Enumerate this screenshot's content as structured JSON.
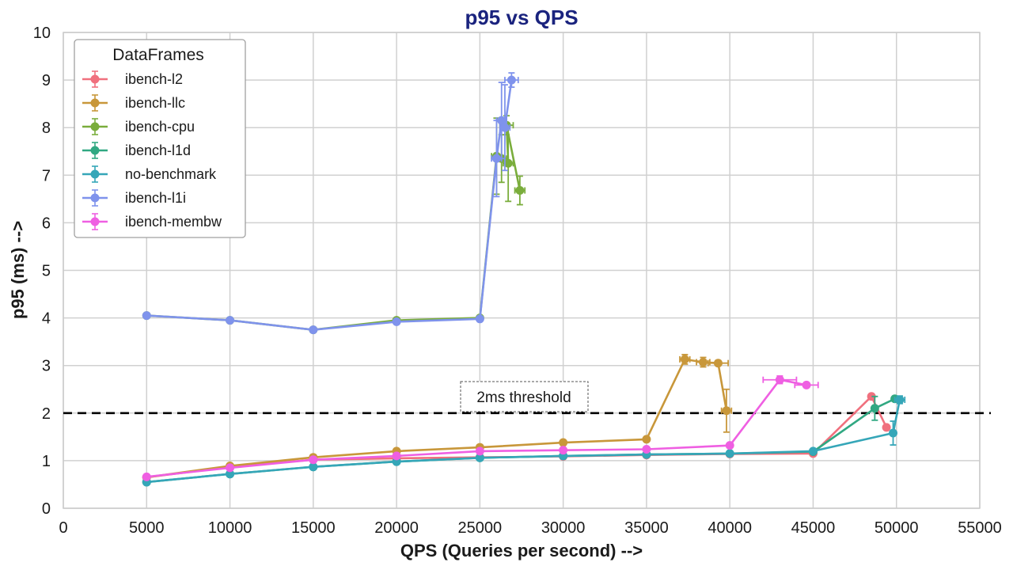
{
  "chart_data": {
    "type": "line",
    "title": "p95 vs QPS",
    "xlabel": "QPS (Queries per second) -->",
    "ylabel": "p95 (ms) -->",
    "xlim": [
      0,
      55000
    ],
    "ylim": [
      0,
      10
    ],
    "xticks": [
      "0",
      "5000",
      "10000",
      "15000",
      "20000",
      "25000",
      "30000",
      "35000",
      "40000",
      "45000",
      "50000",
      "55000"
    ],
    "yticks": [
      "0",
      "1",
      "2",
      "3",
      "4",
      "5",
      "6",
      "7",
      "8",
      "9",
      "10"
    ],
    "grid": true,
    "legend": {
      "title": "DataFrames",
      "placement": "top-left"
    },
    "annotations": [
      {
        "text": "2ms threshold",
        "y": 2,
        "style": "dashed"
      }
    ],
    "series": [
      {
        "name": "ibench-l2",
        "color": "#f0707e",
        "points": [
          {
            "x": 5000,
            "y": 0.65
          },
          {
            "x": 10000,
            "y": 0.87
          },
          {
            "x": 15000,
            "y": 1.02
          },
          {
            "x": 20000,
            "y": 1.05
          },
          {
            "x": 25000,
            "y": 1.07
          },
          {
            "x": 30000,
            "y": 1.09
          },
          {
            "x": 35000,
            "y": 1.12
          },
          {
            "x": 40000,
            "y": 1.14
          },
          {
            "x": 45000,
            "y": 1.15
          },
          {
            "x": 48500,
            "y": 2.35
          },
          {
            "x": 49400,
            "y": 1.7
          }
        ]
      },
      {
        "name": "ibench-llc",
        "color": "#c8973a",
        "points": [
          {
            "x": 5000,
            "y": 0.65
          },
          {
            "x": 10000,
            "y": 0.89
          },
          {
            "x": 15000,
            "y": 1.07
          },
          {
            "x": 20000,
            "y": 1.2
          },
          {
            "x": 25000,
            "y": 1.28
          },
          {
            "x": 30000,
            "y": 1.38
          },
          {
            "x": 35000,
            "y": 1.45
          },
          {
            "x": 37300,
            "y": 3.13,
            "xerr": 300,
            "yerr": 0.1
          },
          {
            "x": 38400,
            "y": 3.07,
            "xerr": 400,
            "yerr": 0.1
          },
          {
            "x": 39300,
            "y": 3.05,
            "xerr": 600,
            "yerr": 0.05
          },
          {
            "x": 39800,
            "y": 2.05,
            "xerr": 300,
            "yerr": 0.45
          }
        ]
      },
      {
        "name": "ibench-cpu",
        "color": "#7aad3c",
        "points": [
          {
            "x": 5000,
            "y": 4.05
          },
          {
            "x": 10000,
            "y": 3.95
          },
          {
            "x": 15000,
            "y": 3.75
          },
          {
            "x": 20000,
            "y": 3.95
          },
          {
            "x": 25000,
            "y": 4.0
          },
          {
            "x": 26000,
            "y": 7.4,
            "xerr": 300,
            "yerr": 0.8
          },
          {
            "x": 26300,
            "y": 7.35,
            "xerr": 300,
            "yerr": 0.5
          },
          {
            "x": 26700,
            "y": 7.25,
            "xerr": 300,
            "yerr": 0.8
          },
          {
            "x": 26600,
            "y": 8.05,
            "xerr": 400,
            "yerr": 0.2
          },
          {
            "x": 27400,
            "y": 6.68,
            "xerr": 300,
            "yerr": 0.3
          }
        ]
      },
      {
        "name": "ibench-l1d",
        "color": "#31a882",
        "points": [
          {
            "x": 5000,
            "y": 0.55
          },
          {
            "x": 10000,
            "y": 0.72
          },
          {
            "x": 15000,
            "y": 0.87
          },
          {
            "x": 20000,
            "y": 0.98
          },
          {
            "x": 25000,
            "y": 1.06
          },
          {
            "x": 30000,
            "y": 1.1
          },
          {
            "x": 35000,
            "y": 1.13
          },
          {
            "x": 40000,
            "y": 1.15
          },
          {
            "x": 45000,
            "y": 1.19
          },
          {
            "x": 48700,
            "y": 2.1,
            "yerr": 0.25
          },
          {
            "x": 49900,
            "y": 2.3
          }
        ]
      },
      {
        "name": "no-benchmark",
        "color": "#35a6b8",
        "points": [
          {
            "x": 5000,
            "y": 0.55
          },
          {
            "x": 10000,
            "y": 0.72
          },
          {
            "x": 15000,
            "y": 0.87
          },
          {
            "x": 20000,
            "y": 0.98
          },
          {
            "x": 25000,
            "y": 1.06
          },
          {
            "x": 30000,
            "y": 1.1
          },
          {
            "x": 35000,
            "y": 1.13
          },
          {
            "x": 40000,
            "y": 1.15
          },
          {
            "x": 45000,
            "y": 1.2
          },
          {
            "x": 49800,
            "y": 1.58,
            "yerr": 0.25
          },
          {
            "x": 50200,
            "y": 2.28,
            "xerr": 300,
            "yerr": 0.08
          }
        ]
      },
      {
        "name": "ibench-l1i",
        "color": "#7f93ec",
        "points": [
          {
            "x": 5000,
            "y": 4.05
          },
          {
            "x": 10000,
            "y": 3.95
          },
          {
            "x": 15000,
            "y": 3.75
          },
          {
            "x": 20000,
            "y": 3.92
          },
          {
            "x": 25000,
            "y": 3.98
          },
          {
            "x": 26000,
            "y": 7.35,
            "xerr": 300,
            "yerr": 0.8
          },
          {
            "x": 26300,
            "y": 8.15,
            "xerr": 300,
            "yerr": 0.8
          },
          {
            "x": 26500,
            "y": 8.0,
            "xerr": 300,
            "yerr": 0.9
          },
          {
            "x": 26900,
            "y": 9.0,
            "xerr": 400,
            "yerr": 0.15
          }
        ]
      },
      {
        "name": "ibench-membw",
        "color": "#ef5fe2",
        "points": [
          {
            "x": 5000,
            "y": 0.66
          },
          {
            "x": 10000,
            "y": 0.85
          },
          {
            "x": 15000,
            "y": 1.02
          },
          {
            "x": 20000,
            "y": 1.1
          },
          {
            "x": 25000,
            "y": 1.2
          },
          {
            "x": 30000,
            "y": 1.22
          },
          {
            "x": 35000,
            "y": 1.24
          },
          {
            "x": 40000,
            "y": 1.32
          },
          {
            "x": 43000,
            "y": 2.7,
            "xerr": 1000,
            "yerr": 0.08
          },
          {
            "x": 44600,
            "y": 2.59,
            "xerr": 700,
            "yerr": 0.05
          }
        ]
      }
    ]
  }
}
